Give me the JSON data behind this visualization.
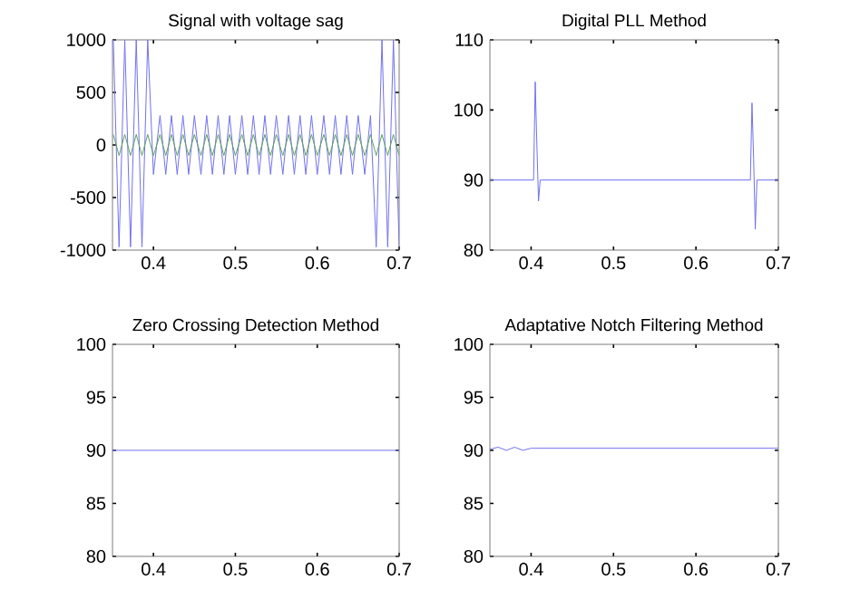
{
  "chart_data": [
    {
      "type": "line",
      "title": "Signal with voltage sag",
      "x": [
        0.351,
        0.358,
        0.365,
        0.372,
        0.379,
        0.386,
        0.393,
        0.4,
        0.408,
        0.415,
        0.422,
        0.429,
        0.436,
        0.443,
        0.45,
        0.458,
        0.465,
        0.472,
        0.479,
        0.486,
        0.493,
        0.5,
        0.508,
        0.515,
        0.522,
        0.529,
        0.536,
        0.543,
        0.55,
        0.558,
        0.565,
        0.572,
        0.579,
        0.586,
        0.593,
        0.6,
        0.608,
        0.615,
        0.622,
        0.629,
        0.636,
        0.643,
        0.65,
        0.658,
        0.665,
        0.672,
        0.679,
        0.686,
        0.693,
        0.7
      ],
      "series": [
        {
          "color": "#7070f0",
          "values": [
            1000,
            -970,
            1000,
            -970,
            1000,
            -970,
            1000,
            -280,
            280,
            -280,
            280,
            -280,
            280,
            -280,
            280,
            -280,
            280,
            -280,
            280,
            -280,
            280,
            -280,
            280,
            -280,
            280,
            -280,
            280,
            -280,
            280,
            -280,
            280,
            -280,
            280,
            -280,
            280,
            -280,
            280,
            -280,
            280,
            -280,
            280,
            -280,
            280,
            -280,
            280,
            -970,
            1000,
            -970,
            1000,
            -970
          ]
        },
        {
          "color": "#60a060",
          "values": [
            100,
            -100,
            100,
            -100,
            100,
            -100,
            100,
            -100,
            100,
            -100,
            100,
            -100,
            100,
            -100,
            100,
            -100,
            100,
            -100,
            100,
            -100,
            100,
            -100,
            100,
            -100,
            100,
            -100,
            100,
            -100,
            100,
            -100,
            100,
            -100,
            100,
            -100,
            100,
            -100,
            100,
            -100,
            100,
            -100,
            100,
            -100,
            100,
            -100,
            100,
            -100,
            100,
            -100,
            100,
            -100
          ]
        }
      ],
      "xlim": [
        0.35,
        0.7
      ],
      "xticks": [
        0.4,
        0.5,
        0.6,
        0.7
      ],
      "ylim": [
        -1000,
        1000
      ],
      "yticks": [
        -1000,
        -500,
        0,
        500,
        1000
      ]
    },
    {
      "type": "line",
      "title": "Digital PLL Method",
      "x": [
        0.35,
        0.403,
        0.405,
        0.407,
        0.409,
        0.411,
        0.666,
        0.668,
        0.67,
        0.672,
        0.674,
        0.7
      ],
      "series": [
        {
          "color": "#7070f0",
          "values": [
            90,
            90,
            104,
            95,
            87,
            90,
            90,
            101,
            93,
            83,
            90,
            90
          ]
        }
      ],
      "xlim": [
        0.35,
        0.7
      ],
      "xticks": [
        0.4,
        0.5,
        0.6,
        0.7
      ],
      "ylim": [
        80,
        110
      ],
      "yticks": [
        80,
        90,
        100,
        110
      ]
    },
    {
      "type": "line",
      "title": "Zero Crossing Detection Method",
      "x": [
        0.35,
        0.7
      ],
      "series": [
        {
          "color": "#7070f0",
          "values": [
            90,
            90
          ]
        }
      ],
      "xlim": [
        0.35,
        0.7
      ],
      "xticks": [
        0.4,
        0.5,
        0.6,
        0.7
      ],
      "ylim": [
        80,
        100
      ],
      "yticks": [
        80,
        85,
        90,
        95,
        100
      ]
    },
    {
      "type": "line",
      "title": "Adaptative Notch Filtering Method",
      "x": [
        0.35,
        0.36,
        0.37,
        0.38,
        0.39,
        0.4,
        0.7
      ],
      "series": [
        {
          "color": "#7070f0",
          "values": [
            90.1,
            90.3,
            90.0,
            90.3,
            90.0,
            90.2,
            90.2
          ]
        }
      ],
      "xlim": [
        0.35,
        0.7
      ],
      "xticks": [
        0.4,
        0.5,
        0.6,
        0.7
      ],
      "ylim": [
        80,
        100
      ],
      "yticks": [
        80,
        85,
        90,
        95,
        100
      ]
    }
  ]
}
